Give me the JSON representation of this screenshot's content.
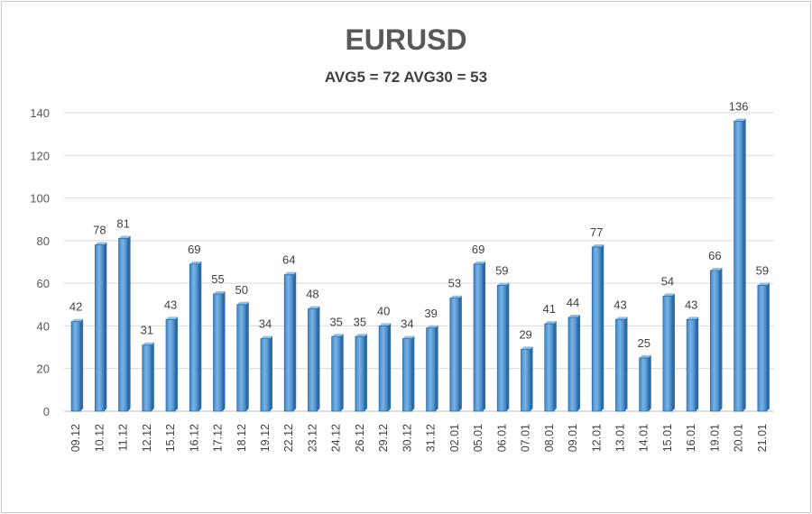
{
  "chart_data": {
    "type": "bar",
    "title": "EURUSD",
    "subtitle": "AVG5 = 72 AVG30 = 53",
    "categories": [
      "09.12",
      "10.12",
      "11.12",
      "12.12",
      "15.12",
      "16.12",
      "17.12",
      "18.12",
      "19.12",
      "22.12",
      "23.12",
      "24.12",
      "26.12",
      "29.12",
      "30.12",
      "31.12",
      "02.01",
      "05.01",
      "06.01",
      "07.01",
      "08.01",
      "09.01",
      "12.01",
      "13.01",
      "14.01",
      "15.01",
      "16.01",
      "19.01",
      "20.01",
      "21.01"
    ],
    "values": [
      42,
      78,
      81,
      31,
      43,
      69,
      55,
      50,
      34,
      64,
      48,
      35,
      35,
      40,
      34,
      39,
      53,
      69,
      59,
      29,
      41,
      44,
      77,
      43,
      25,
      54,
      43,
      66,
      136,
      59
    ],
    "yticks": [
      0,
      20,
      40,
      60,
      80,
      100,
      120,
      140
    ],
    "ylim": [
      0,
      140
    ],
    "grid": true,
    "legend": "none",
    "bar_color": "#5b9bd5",
    "bar_edge_color": "#2e6da4"
  }
}
